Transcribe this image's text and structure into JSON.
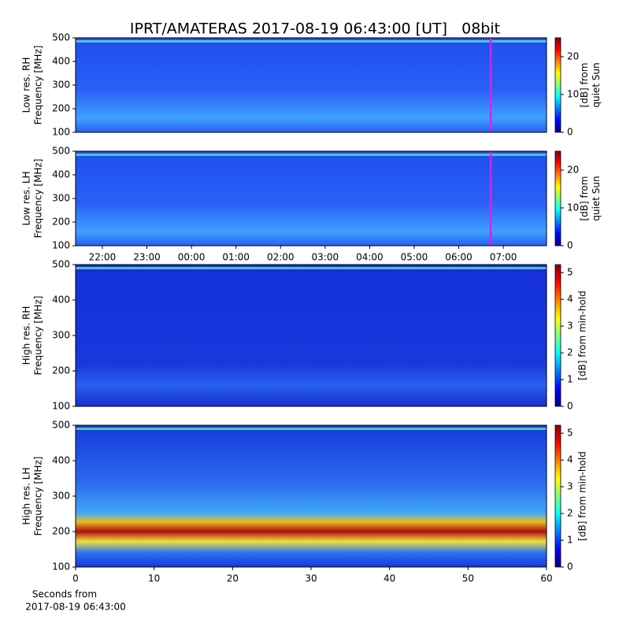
{
  "title": "IPRT/AMATERAS 2017-08-19 06:43:00 [UT]   08bit",
  "chart_data": [
    {
      "type": "heatmap",
      "ylabel": [
        "Low res. RH",
        "Frequency [MHz]"
      ],
      "xlim": [
        21.4,
        31.97
      ],
      "marker": 30.717,
      "marker_color": "#e020e0",
      "ylim": [
        100,
        500
      ],
      "yticks": [
        100,
        200,
        300,
        400,
        500
      ],
      "colorbar": {
        "label": [
          "[dB] from",
          "quiet Sun"
        ],
        "lim": [
          0,
          25
        ],
        "ticks": [
          0,
          10,
          20
        ]
      }
    },
    {
      "type": "heatmap",
      "ylabel": [
        "Low res. LH",
        "Frequency [MHz]"
      ],
      "xlim": [
        21.4,
        31.97
      ],
      "marker": 30.717,
      "marker_color": "#e020e0",
      "xticks": [
        {
          "value": 22,
          "label": "22:00"
        },
        {
          "value": 23,
          "label": "23:00"
        },
        {
          "value": 24,
          "label": "00:00"
        },
        {
          "value": 25,
          "label": "01:00"
        },
        {
          "value": 26,
          "label": "02:00"
        },
        {
          "value": 27,
          "label": "03:00"
        },
        {
          "value": 28,
          "label": "04:00"
        },
        {
          "value": 29,
          "label": "05:00"
        },
        {
          "value": 30,
          "label": "06:00"
        },
        {
          "value": 31,
          "label": "07:00"
        }
      ],
      "ylim": [
        100,
        500
      ],
      "yticks": [
        100,
        200,
        300,
        400,
        500
      ],
      "colorbar": {
        "label": [
          "[dB] from",
          "quiet Sun"
        ],
        "lim": [
          0,
          25
        ],
        "ticks": [
          0,
          10,
          20
        ]
      }
    },
    {
      "type": "heatmap",
      "ylabel": [
        "High res. RH",
        "Frequency [MHz]"
      ],
      "xlim": [
        0,
        60
      ],
      "ylim": [
        100,
        500
      ],
      "yticks": [
        100,
        200,
        300,
        400,
        500
      ],
      "colorbar": {
        "label": [
          "[dB] from min-hold"
        ],
        "lim": [
          0,
          5.3
        ],
        "ticks": [
          0,
          1,
          2,
          3,
          4,
          5
        ]
      }
    },
    {
      "type": "heatmap",
      "ylabel": [
        "High res. LH",
        "Frequency [MHz]"
      ],
      "xlim": [
        0,
        60
      ],
      "xticks": [
        0,
        10,
        20,
        30,
        40,
        50,
        60
      ],
      "xlabel": [
        "Seconds from",
        "2017-08-19 06:43:00"
      ],
      "ylim": [
        100,
        500
      ],
      "yticks": [
        100,
        200,
        300,
        400,
        500
      ],
      "colorbar": {
        "label": [
          "[dB] from min-hold"
        ],
        "lim": [
          0,
          5.3
        ],
        "ticks": [
          0,
          1,
          2,
          3,
          4,
          5
        ]
      }
    }
  ]
}
